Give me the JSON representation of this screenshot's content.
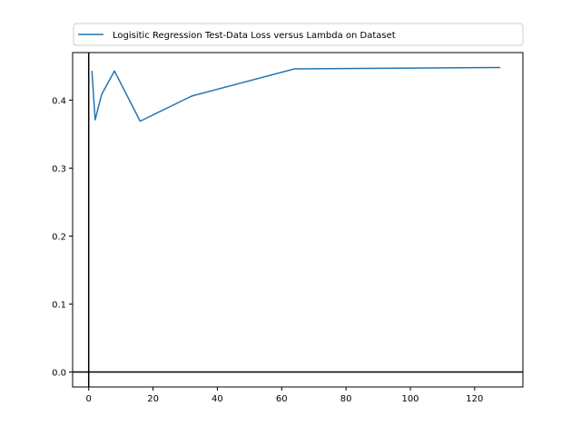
{
  "chart_data": {
    "type": "line",
    "title": "",
    "xlabel": "",
    "ylabel": "",
    "xlim": [
      -5,
      135
    ],
    "ylim": [
      -0.022,
      0.47
    ],
    "xticks": [
      0,
      20,
      40,
      60,
      80,
      100,
      120
    ],
    "yticks": [
      0.0,
      0.1,
      0.2,
      0.3,
      0.4
    ],
    "ytick_labels": [
      "0.0",
      "0.1",
      "0.2",
      "0.3",
      "0.4"
    ],
    "grid": false,
    "legend_position": "top-center",
    "reference_lines": {
      "x": 0,
      "y": 0
    },
    "series": [
      {
        "name": "Logisitic Regression Test-Data Loss versus Lambda on Dataset",
        "color": "#1f77b4",
        "x": [
          1,
          2,
          4,
          8,
          16,
          32,
          64,
          128
        ],
        "y": [
          0.443,
          0.371,
          0.408,
          0.443,
          0.369,
          0.406,
          0.446,
          0.448
        ]
      }
    ]
  }
}
